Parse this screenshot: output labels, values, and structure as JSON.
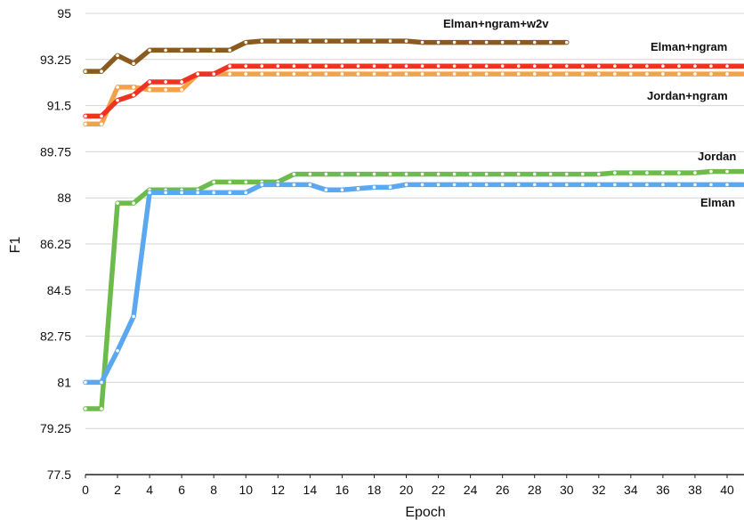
{
  "chart_data": {
    "type": "line",
    "title": "",
    "xlabel": "Epoch",
    "ylabel": "F1",
    "xlim": [
      0,
      41
    ],
    "ylim": [
      77.5,
      95
    ],
    "xticks": [
      "0",
      "2",
      "4",
      "6",
      "8",
      "10",
      "12",
      "14",
      "16",
      "18",
      "20",
      "22",
      "24",
      "26",
      "28",
      "30",
      "32",
      "34",
      "36",
      "38",
      "40"
    ],
    "yticks": [
      "95",
      "93.25",
      "91.5",
      "89.75",
      "88",
      "86.25",
      "84.5",
      "82.75",
      "81",
      "79.25",
      "77.5"
    ],
    "grid": true,
    "legend": "inline labels next to lines",
    "series": [
      {
        "name": "Elman+ngram+w2v",
        "color": "#8B5A1E",
        "x": [
          0,
          1,
          2,
          3,
          4,
          5,
          6,
          7,
          8,
          9,
          10,
          11,
          12,
          13,
          14,
          15,
          16,
          17,
          18,
          19,
          20,
          21,
          22,
          23,
          24,
          25,
          26,
          27,
          28,
          29,
          30
        ],
        "values": [
          92.8,
          92.8,
          93.4,
          93.1,
          93.6,
          93.6,
          93.6,
          93.6,
          93.6,
          93.6,
          93.9,
          93.95,
          93.95,
          93.95,
          93.95,
          93.95,
          93.95,
          93.95,
          93.95,
          93.95,
          93.95,
          93.9,
          93.9,
          93.9,
          93.9,
          93.9,
          93.9,
          93.9,
          93.9,
          93.9,
          93.9
        ]
      },
      {
        "name": "Elman+ngram",
        "color": "#EE3322",
        "x": [
          0,
          1,
          2,
          3,
          4,
          5,
          6,
          7,
          8,
          9,
          10,
          11,
          12,
          13,
          14,
          15,
          16,
          17,
          18,
          19,
          20,
          21,
          22,
          23,
          24,
          25,
          26,
          27,
          28,
          29,
          30,
          31,
          32,
          33,
          34,
          35,
          36,
          37,
          38,
          39,
          40,
          41
        ],
        "values": [
          91.1,
          91.1,
          91.7,
          91.9,
          92.4,
          92.4,
          92.4,
          92.7,
          92.7,
          93.0,
          93.0,
          93.0,
          93.0,
          93.0,
          93.0,
          93.0,
          93.0,
          93.0,
          93.0,
          93.0,
          93.0,
          93.0,
          93.0,
          93.0,
          93.0,
          93.0,
          93.0,
          93.0,
          93.0,
          93.0,
          93.0,
          93.0,
          93.0,
          93.0,
          93.0,
          93.0,
          93.0,
          93.0,
          93.0,
          93.0,
          93.0,
          93.0
        ]
      },
      {
        "name": "Jordan+ngram",
        "color": "#F4A24A",
        "x": [
          0,
          1,
          2,
          3,
          4,
          5,
          6,
          7,
          8,
          9,
          10,
          11,
          12,
          13,
          14,
          15,
          16,
          17,
          18,
          19,
          20,
          21,
          22,
          23,
          24,
          25,
          26,
          27,
          28,
          29,
          30,
          31,
          32,
          33,
          34,
          35,
          36,
          37,
          38,
          39,
          40,
          41
        ],
        "values": [
          90.8,
          90.8,
          92.2,
          92.2,
          92.1,
          92.1,
          92.1,
          92.7,
          92.7,
          92.7,
          92.7,
          92.7,
          92.7,
          92.7,
          92.7,
          92.7,
          92.7,
          92.7,
          92.7,
          92.7,
          92.7,
          92.7,
          92.7,
          92.7,
          92.7,
          92.7,
          92.7,
          92.7,
          92.7,
          92.7,
          92.7,
          92.7,
          92.7,
          92.7,
          92.7,
          92.7,
          92.7,
          92.7,
          92.7,
          92.7,
          92.7,
          92.7
        ]
      },
      {
        "name": "Jordan",
        "color": "#6DBB4B",
        "x": [
          0,
          1,
          2,
          3,
          4,
          5,
          6,
          7,
          8,
          9,
          10,
          11,
          12,
          13,
          14,
          15,
          16,
          17,
          18,
          19,
          20,
          21,
          22,
          23,
          24,
          25,
          26,
          27,
          28,
          29,
          30,
          31,
          32,
          33,
          34,
          35,
          36,
          37,
          38,
          39,
          40,
          41
        ],
        "values": [
          80.0,
          80.0,
          87.8,
          87.8,
          88.3,
          88.3,
          88.3,
          88.3,
          88.6,
          88.6,
          88.6,
          88.6,
          88.6,
          88.9,
          88.9,
          88.9,
          88.9,
          88.9,
          88.9,
          88.9,
          88.9,
          88.9,
          88.9,
          88.9,
          88.9,
          88.9,
          88.9,
          88.9,
          88.9,
          88.9,
          88.9,
          88.9,
          88.9,
          88.95,
          88.95,
          88.95,
          88.95,
          88.95,
          88.95,
          89.0,
          89.0,
          89.0
        ]
      },
      {
        "name": "Elman",
        "color": "#5BA8F0",
        "x": [
          0,
          1,
          2,
          3,
          4,
          5,
          6,
          7,
          8,
          9,
          10,
          11,
          12,
          13,
          14,
          15,
          16,
          17,
          18,
          19,
          20,
          21,
          22,
          23,
          24,
          25,
          26,
          27,
          28,
          29,
          30,
          31,
          32,
          33,
          34,
          35,
          36,
          37,
          38,
          39,
          40,
          41
        ],
        "values": [
          81.0,
          81.0,
          82.2,
          83.5,
          88.2,
          88.2,
          88.2,
          88.2,
          88.2,
          88.2,
          88.2,
          88.5,
          88.5,
          88.5,
          88.5,
          88.3,
          88.3,
          88.35,
          88.4,
          88.4,
          88.5,
          88.5,
          88.5,
          88.5,
          88.5,
          88.5,
          88.5,
          88.5,
          88.5,
          88.5,
          88.5,
          88.5,
          88.5,
          88.5,
          88.5,
          88.5,
          88.5,
          88.5,
          88.5,
          88.5,
          88.5,
          88.5
        ]
      }
    ],
    "series_labels": [
      "Elman+ngram+w2v",
      "Elman+ngram",
      "Jordan+ngram",
      "Jordan",
      "Elman"
    ]
  }
}
